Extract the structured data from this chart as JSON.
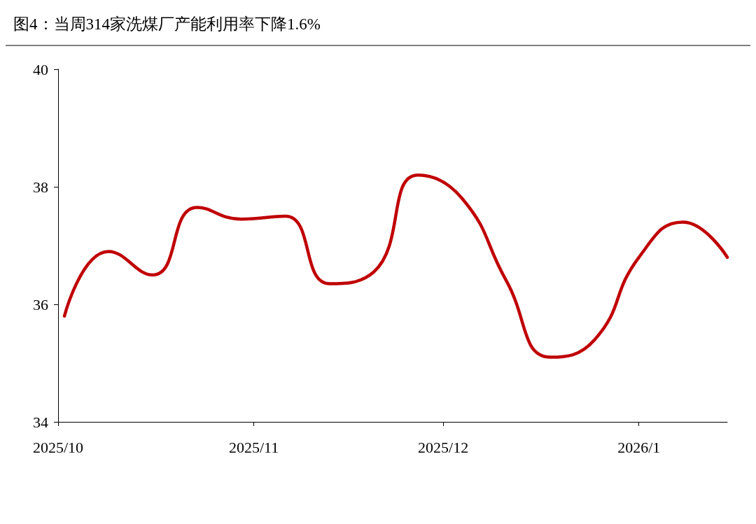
{
  "chart_data": {
    "type": "line",
    "title": "图4：当周314家洗煤厂产能利用率下降1.6%",
    "x": [
      "2025-10-02",
      "2025-10-09",
      "2025-10-16",
      "2025-10-23",
      "2025-10-30",
      "2025-11-06",
      "2025-11-13",
      "2025-11-20",
      "2025-11-27",
      "2025-12-04",
      "2025-12-11",
      "2025-12-18",
      "2025-12-25",
      "2026-01-01",
      "2026-01-08",
      "2026-01-15"
    ],
    "series": [
      {
        "color": "#c00000",
        "values": [
          35.8,
          36.9,
          36.5,
          37.65,
          37.45,
          37.5,
          36.35,
          36.55,
          38.2,
          37.8,
          36.4,
          35.1,
          35.4,
          36.8,
          37.4,
          36.8
        ]
      }
    ],
    "xlim": [
      "2025-10-01",
      "2026-01-15"
    ],
    "xticks": [
      {
        "value": "2025-10-01",
        "label": "2025/10"
      },
      {
        "value": "2025-11-01",
        "label": "2025/11"
      },
      {
        "value": "2025-12-01",
        "label": "2025/12"
      },
      {
        "value": "2026-01-01",
        "label": "2026/1"
      }
    ],
    "ylim": [
      34,
      40
    ],
    "yticks": [
      34,
      36,
      38,
      40
    ],
    "grid": false,
    "marker": "none",
    "line_style": "solid"
  }
}
